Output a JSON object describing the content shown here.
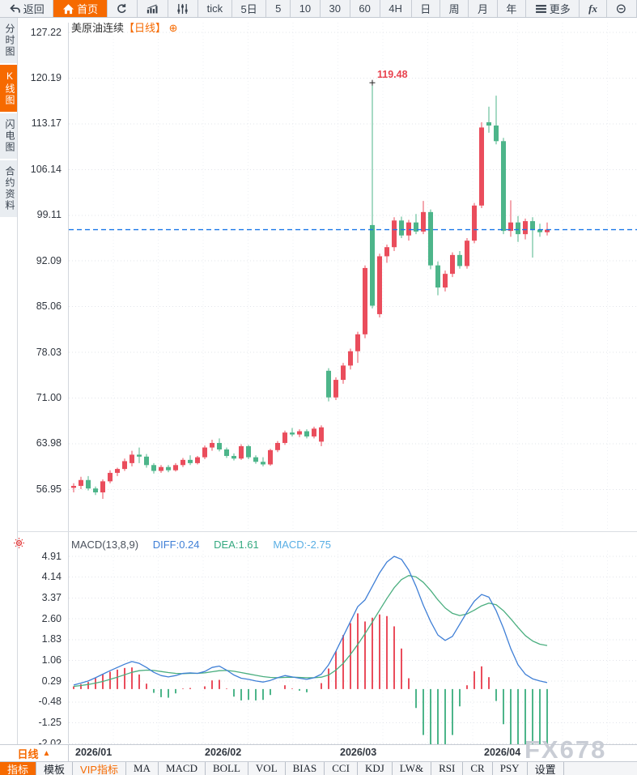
{
  "toolbar_top": {
    "items": [
      {
        "name": "back",
        "label": "返回",
        "icon": "back"
      },
      {
        "name": "home",
        "label": "首页",
        "icon": "home",
        "active": true
      },
      {
        "name": "refresh",
        "icon": "refresh"
      },
      {
        "name": "chart-style",
        "icon": "chart"
      },
      {
        "name": "indicator-params",
        "icon": "sliders"
      },
      {
        "name": "tick",
        "label": "tick"
      },
      {
        "name": "5d",
        "label": "5日"
      },
      {
        "name": "5min",
        "label": "5"
      },
      {
        "name": "10min",
        "label": "10"
      },
      {
        "name": "30min",
        "label": "30"
      },
      {
        "name": "60min",
        "label": "60"
      },
      {
        "name": "4h",
        "label": "4H"
      },
      {
        "name": "day",
        "label": "日"
      },
      {
        "name": "week",
        "label": "周"
      },
      {
        "name": "month",
        "label": "月"
      },
      {
        "name": "year",
        "label": "年"
      },
      {
        "name": "more",
        "label": "更多",
        "icon": "menu"
      },
      {
        "name": "fx",
        "label": "fx",
        "fx": true
      },
      {
        "name": "zoom-out",
        "icon": "zoom-out"
      }
    ]
  },
  "sidebar": {
    "items": [
      {
        "name": "time-chart",
        "label": "分时图"
      },
      {
        "name": "kline-chart",
        "label": "K线图",
        "active": true
      },
      {
        "name": "lightning-chart",
        "label": "闪电图"
      },
      {
        "name": "contract-info",
        "label": "合约资料"
      }
    ]
  },
  "chart": {
    "title": "美原油连续",
    "period_tag": "【日线】",
    "expand_icon": "⊕",
    "high_annotation": "119.48"
  },
  "macd_header": {
    "params": "MACD(13,8,9)",
    "diff_label": "DIFF:0.24",
    "dea_label": "DEA:1.61",
    "macd_label": "MACD:-2.75"
  },
  "xaxis": {
    "labels": [
      "2026/01",
      "2026/02",
      "2026/03",
      "2026/04"
    ],
    "period_label": "日线",
    "period_arrow": "▲"
  },
  "watermark": "FX678",
  "toolbar_bottom": {
    "items": [
      {
        "name": "indicator",
        "label": "指标",
        "active": true
      },
      {
        "name": "template",
        "label": "模板"
      },
      {
        "name": "vip-indicator",
        "label": "VIP指标",
        "vip": true
      },
      {
        "name": "ma",
        "label": "MA"
      },
      {
        "name": "macd",
        "label": "MACD"
      },
      {
        "name": "boll",
        "label": "BOLL"
      },
      {
        "name": "vol",
        "label": "VOL"
      },
      {
        "name": "bias",
        "label": "BIAS"
      },
      {
        "name": "cci",
        "label": "CCI"
      },
      {
        "name": "kdj",
        "label": "KDJ"
      },
      {
        "name": "lw",
        "label": "LW&"
      },
      {
        "name": "rsi",
        "label": "RSI"
      },
      {
        "name": "cr",
        "label": "CR"
      },
      {
        "name": "psy",
        "label": "PSY"
      },
      {
        "name": "settings",
        "label": "设置"
      }
    ]
  },
  "colors": {
    "up": "#ea4d5c",
    "down": "#4db58a",
    "last_price_line": "#1a78e8",
    "diff_line": "#3f7fd6",
    "dea_line": "#4aae7f",
    "annotation": "#e8434f",
    "accent_orange": "#f66a00",
    "grid": "#e2e4ea"
  },
  "chart_data": {
    "type": "candlestick",
    "title": "美原油连续【日线】",
    "price_axis_labels": [
      "127.22",
      "120.19",
      "113.17",
      "106.14",
      "99.11",
      "92.09",
      "85.06",
      "78.03",
      "71.00",
      "63.98",
      "56.95"
    ],
    "x_labels": [
      "2026/01",
      "2026/02",
      "2026/03",
      "2026/04"
    ],
    "high_annotation_value": 119.48,
    "last_price_line": 96.9,
    "candles_ohlc": [
      [
        57.2,
        57.9,
        56.5,
        57.5
      ],
      [
        57.5,
        58.9,
        57.0,
        58.4
      ],
      [
        58.4,
        59.0,
        56.8,
        57.1
      ],
      [
        57.1,
        57.4,
        56.1,
        56.5
      ],
      [
        56.5,
        58.5,
        55.5,
        58.2
      ],
      [
        58.2,
        59.9,
        57.9,
        59.5
      ],
      [
        59.5,
        60.3,
        59.0,
        60.1
      ],
      [
        60.1,
        61.7,
        59.8,
        61.3
      ],
      [
        61.0,
        62.9,
        60.5,
        62.3
      ],
      [
        62.3,
        63.4,
        61.0,
        62.0
      ],
      [
        62.0,
        62.4,
        60.3,
        60.7
      ],
      [
        60.7,
        61.0,
        59.4,
        59.8
      ],
      [
        59.8,
        60.7,
        59.5,
        60.4
      ],
      [
        60.4,
        60.7,
        59.6,
        59.9
      ],
      [
        59.9,
        61.0,
        59.7,
        60.7
      ],
      [
        60.7,
        61.8,
        60.4,
        61.5
      ],
      [
        61.5,
        62.2,
        60.7,
        61.0
      ],
      [
        61.0,
        62.1,
        60.8,
        61.9
      ],
      [
        61.9,
        63.7,
        61.6,
        63.4
      ],
      [
        63.4,
        64.6,
        62.9,
        64.1
      ],
      [
        64.1,
        64.8,
        62.8,
        63.1
      ],
      [
        63.1,
        63.4,
        61.8,
        62.1
      ],
      [
        62.1,
        62.5,
        61.4,
        61.7
      ],
      [
        61.7,
        63.9,
        61.5,
        63.6
      ],
      [
        63.6,
        63.8,
        61.6,
        61.9
      ],
      [
        61.9,
        62.2,
        60.9,
        61.2
      ],
      [
        61.2,
        61.9,
        60.5,
        60.8
      ],
      [
        60.8,
        63.2,
        60.6,
        63.0
      ],
      [
        63.0,
        64.4,
        62.7,
        64.1
      ],
      [
        64.1,
        66.0,
        63.8,
        65.7
      ],
      [
        65.7,
        66.4,
        65.1,
        65.4
      ],
      [
        65.4,
        66.2,
        65.0,
        65.9
      ],
      [
        65.9,
        66.2,
        64.8,
        65.1
      ],
      [
        65.1,
        66.6,
        64.8,
        66.3
      ],
      [
        64.3,
        66.8,
        63.6,
        66.5
      ],
      [
        75.2,
        75.6,
        70.5,
        71.1
      ],
      [
        71.1,
        74.2,
        70.7,
        73.8
      ],
      [
        73.8,
        76.4,
        73.2,
        76.0
      ],
      [
        76.0,
        78.6,
        75.4,
        78.2
      ],
      [
        78.2,
        81.2,
        76.4,
        80.8
      ],
      [
        80.8,
        91.4,
        80.2,
        91.0
      ],
      [
        97.6,
        119.48,
        84.8,
        85.2
      ],
      [
        83.9,
        93.2,
        83.4,
        92.8
      ],
      [
        92.8,
        94.6,
        91.8,
        94.2
      ],
      [
        94.2,
        98.8,
        93.6,
        98.3
      ],
      [
        98.3,
        98.9,
        95.6,
        96.0
      ],
      [
        96.0,
        98.4,
        95.2,
        98.0
      ],
      [
        98.0,
        99.3,
        96.2,
        96.6
      ],
      [
        96.6,
        101.3,
        96.2,
        99.6
      ],
      [
        99.6,
        100.0,
        90.8,
        91.4
      ],
      [
        91.4,
        92.0,
        86.8,
        88.0
      ],
      [
        88.0,
        90.6,
        87.4,
        90.1
      ],
      [
        90.1,
        93.4,
        89.6,
        93.0
      ],
      [
        93.0,
        93.6,
        90.9,
        91.3
      ],
      [
        91.3,
        95.6,
        90.9,
        95.2
      ],
      [
        95.2,
        101.0,
        94.8,
        100.6
      ],
      [
        100.6,
        113.4,
        100.2,
        112.6
      ],
      [
        113.4,
        115.8,
        111.8,
        112.9
      ],
      [
        112.9,
        117.5,
        110.0,
        110.5
      ],
      [
        110.5,
        111.0,
        96.2,
        96.7
      ],
      [
        96.7,
        101.4,
        95.8,
        98.0
      ],
      [
        98.0,
        99.0,
        95.0,
        96.2
      ],
      [
        96.2,
        98.6,
        95.4,
        98.2
      ],
      [
        98.2,
        98.8,
        92.6,
        96.9
      ],
      [
        96.9,
        97.8,
        95.8,
        96.5
      ],
      [
        96.5,
        98.0,
        96.0,
        96.9
      ]
    ],
    "macd": {
      "params": "MACD(13,8,9)",
      "diff_last": 0.24,
      "dea_last": 1.61,
      "macd_last": -2.75,
      "axis_labels": [
        "4.91",
        "4.14",
        "3.37",
        "2.60",
        "1.83",
        "1.06",
        "0.29",
        "-0.48",
        "-1.25",
        "-2.02"
      ],
      "diff": [
        0.15,
        0.22,
        0.3,
        0.42,
        0.55,
        0.68,
        0.8,
        0.92,
        1.02,
        0.95,
        0.8,
        0.62,
        0.5,
        0.45,
        0.5,
        0.58,
        0.6,
        0.58,
        0.65,
        0.8,
        0.85,
        0.7,
        0.52,
        0.4,
        0.36,
        0.3,
        0.26,
        0.32,
        0.42,
        0.5,
        0.45,
        0.4,
        0.36,
        0.42,
        0.55,
        0.9,
        1.4,
        1.95,
        2.5,
        3.05,
        3.3,
        3.8,
        4.3,
        4.7,
        4.91,
        4.8,
        4.4,
        3.8,
        3.1,
        2.5,
        2.0,
        1.8,
        1.95,
        2.4,
        2.85,
        3.25,
        3.5,
        3.4,
        2.9,
        2.25,
        1.5,
        0.9,
        0.55,
        0.38,
        0.3,
        0.24
      ],
      "dea": [
        0.1,
        0.13,
        0.17,
        0.22,
        0.28,
        0.36,
        0.44,
        0.53,
        0.62,
        0.68,
        0.7,
        0.69,
        0.65,
        0.61,
        0.58,
        0.57,
        0.58,
        0.58,
        0.6,
        0.64,
        0.68,
        0.69,
        0.66,
        0.61,
        0.56,
        0.51,
        0.46,
        0.43,
        0.42,
        0.43,
        0.44,
        0.43,
        0.42,
        0.42,
        0.44,
        0.52,
        0.7,
        0.95,
        1.28,
        1.65,
        2.05,
        2.48,
        2.92,
        3.35,
        3.75,
        4.05,
        4.2,
        4.15,
        3.95,
        3.65,
        3.3,
        3.0,
        2.8,
        2.72,
        2.78,
        2.92,
        3.08,
        3.18,
        3.12,
        2.9,
        2.6,
        2.28,
        1.98,
        1.78,
        1.66,
        1.61
      ]
    }
  }
}
